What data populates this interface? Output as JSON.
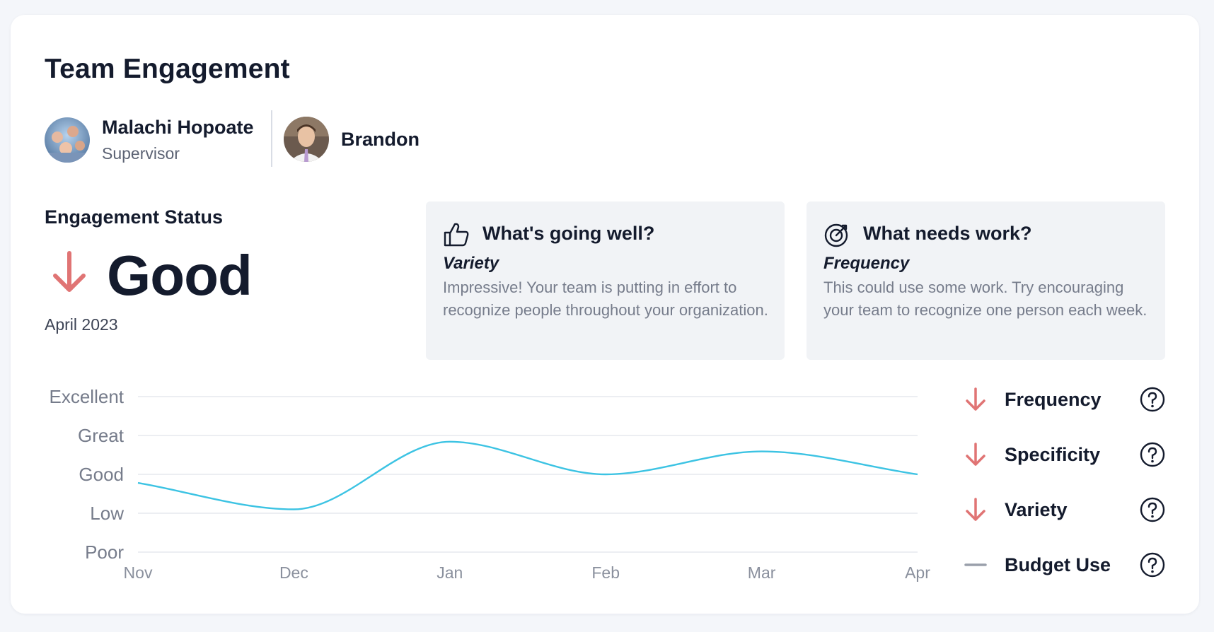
{
  "title": "Team Engagement",
  "people": [
    {
      "name": "Malachi Hopoate",
      "role": "Supervisor"
    },
    {
      "name": "Brandon"
    }
  ],
  "status": {
    "label": "Engagement Status",
    "value": "Good",
    "trend": "down",
    "date": "April 2023",
    "trend_color": "#e07474"
  },
  "going_well": {
    "title": "What's going well?",
    "subtitle": "Variety",
    "text": "Impressive! Your team is putting in effort to recognize people throughout your organization.",
    "icon": "thumbs-up-icon"
  },
  "needs_work": {
    "title": "What needs work?",
    "subtitle": "Frequency",
    "text": "This could use some work. Try encouraging your team to recognize one person each week.",
    "icon": "target-icon"
  },
  "chart_data": {
    "type": "line",
    "categories": [
      "Nov",
      "Dec",
      "Jan",
      "Feb",
      "Mar",
      "Apr"
    ],
    "y_levels": [
      "Poor",
      "Low",
      "Good",
      "Great",
      "Excellent"
    ],
    "series": [
      {
        "values": [
          1.78,
          1.1,
          2.84,
          2.0,
          2.59,
          2.0
        ],
        "color": "#3cc3e3"
      }
    ],
    "ylim": [
      0,
      4
    ],
    "grid": true
  },
  "legend": [
    {
      "label": "Frequency",
      "trend": "down",
      "icon": "down-arrow-icon"
    },
    {
      "label": "Specificity",
      "trend": "down",
      "icon": "down-arrow-icon"
    },
    {
      "label": "Variety",
      "trend": "down",
      "icon": "down-arrow-icon"
    },
    {
      "label": "Budget Use",
      "trend": "flat",
      "icon": "flat-dash-icon"
    }
  ],
  "colors": {
    "down": "#e07474",
    "flat": "#9aa0ab",
    "line": "#3cc3e3"
  }
}
